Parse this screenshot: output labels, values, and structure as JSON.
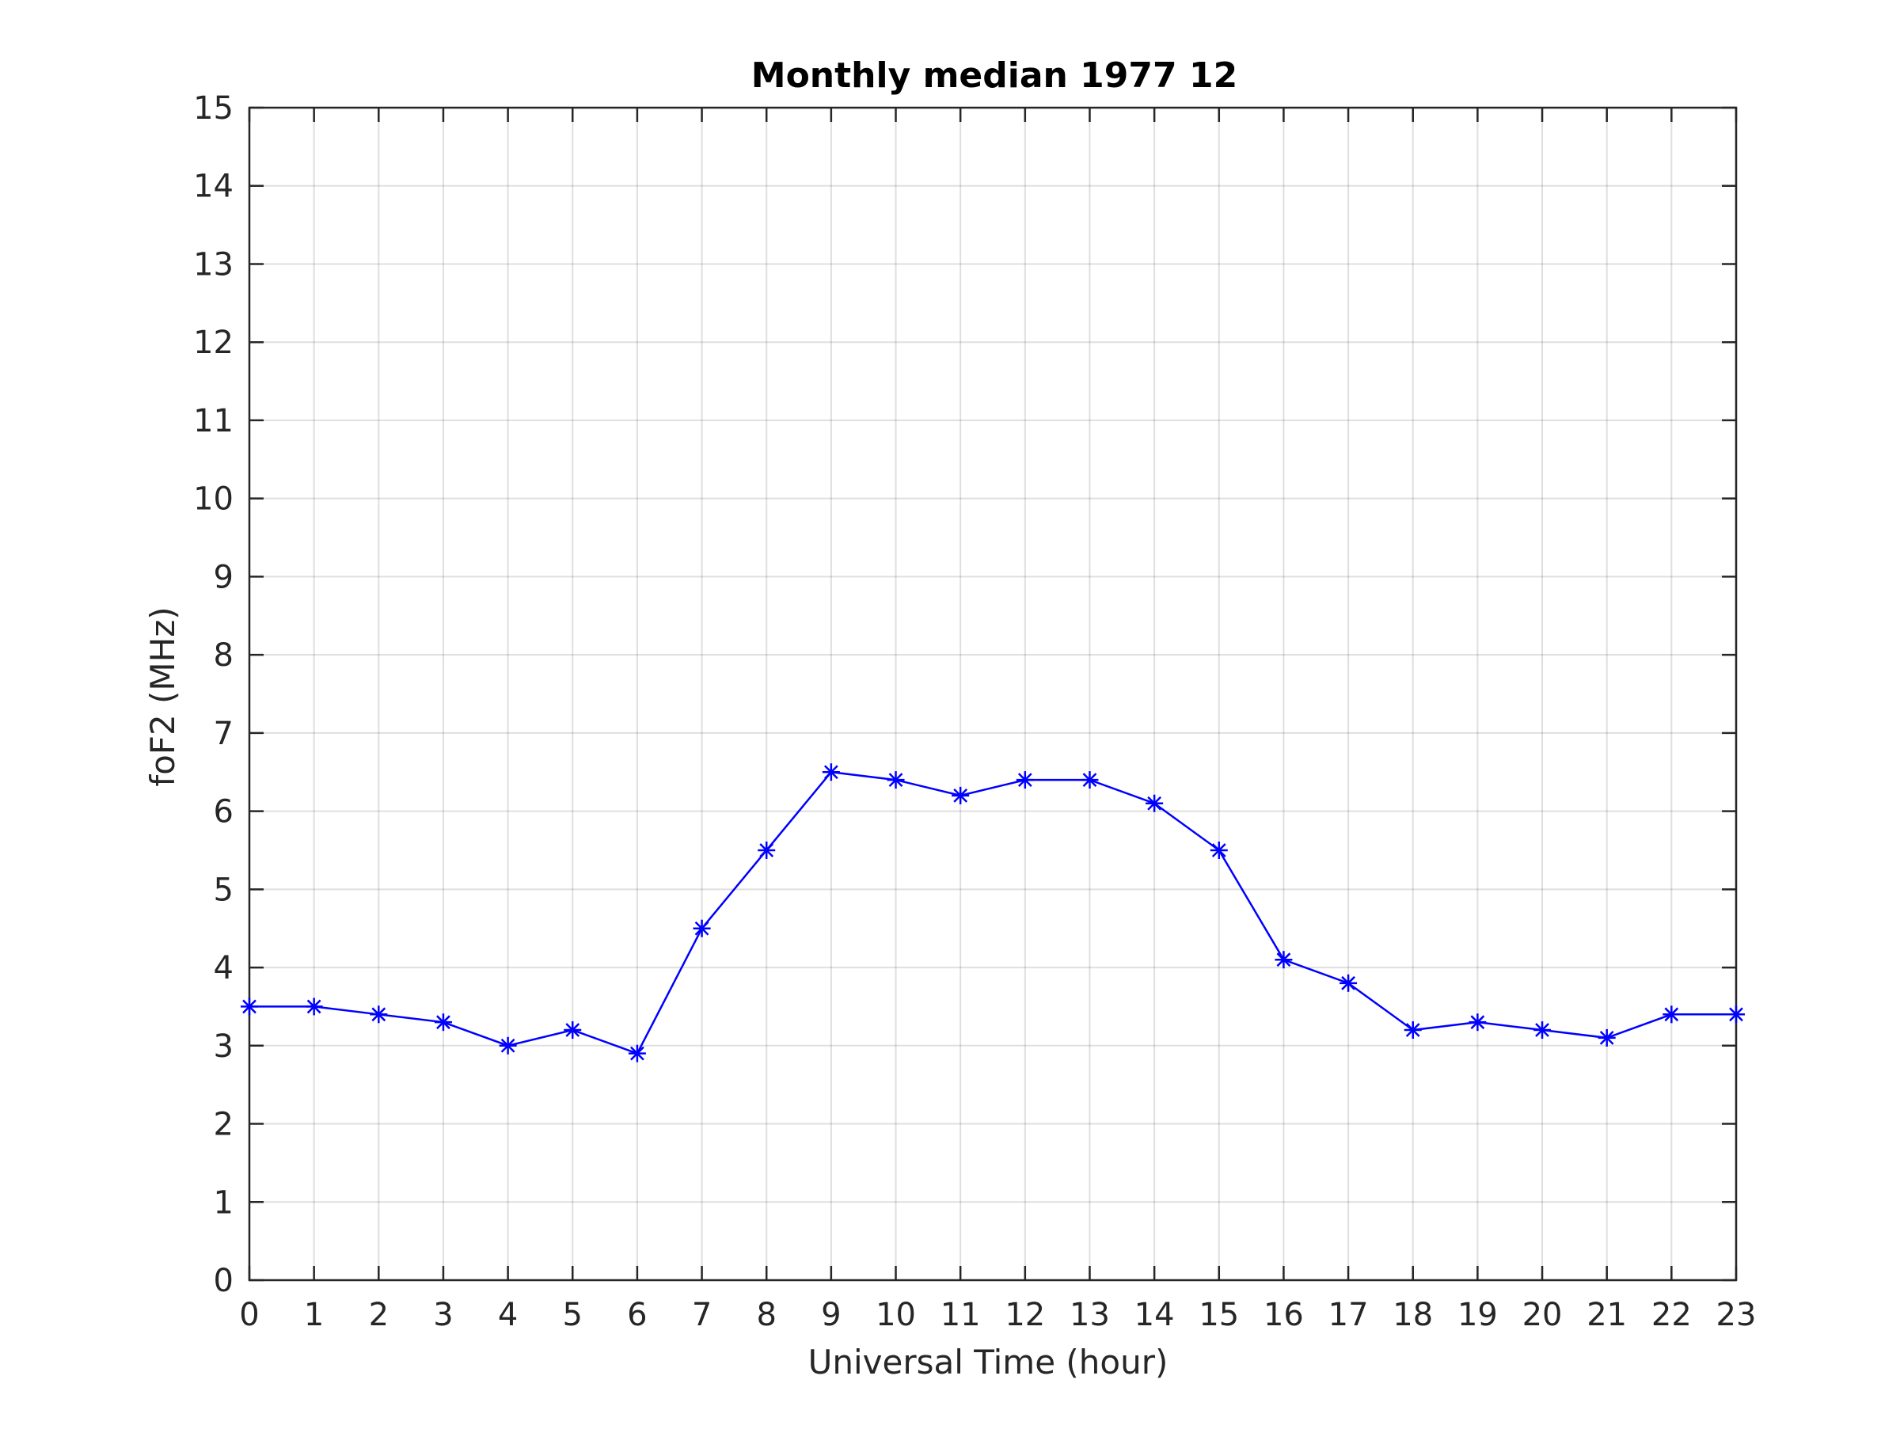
{
  "chart_data": {
    "type": "line",
    "title": "Monthly median 1977 12",
    "xlabel": "Universal Time (hour)",
    "ylabel": "foF2 (MHz)",
    "xlim": [
      0,
      23
    ],
    "ylim": [
      0,
      15
    ],
    "xticks": [
      0,
      1,
      2,
      3,
      4,
      5,
      6,
      7,
      8,
      9,
      10,
      11,
      12,
      13,
      14,
      15,
      16,
      17,
      18,
      19,
      20,
      21,
      22,
      23
    ],
    "yticks": [
      0,
      1,
      2,
      3,
      4,
      5,
      6,
      7,
      8,
      9,
      10,
      11,
      12,
      13,
      14,
      15
    ],
    "grid": true,
    "legend": "none",
    "series": [
      {
        "color": "#0000ff",
        "marker": "asterisk",
        "x": [
          0,
          1,
          2,
          3,
          4,
          5,
          6,
          7,
          8,
          9,
          10,
          11,
          12,
          13,
          14,
          15,
          16,
          17,
          18,
          19,
          20,
          21,
          22,
          23
        ],
        "y": [
          3.5,
          3.5,
          3.4,
          3.3,
          3.0,
          3.2,
          2.9,
          4.5,
          5.5,
          6.5,
          6.4,
          6.2,
          6.4,
          6.4,
          6.1,
          5.5,
          4.1,
          3.8,
          3.2,
          3.3,
          3.2,
          3.1,
          3.4,
          3.4
        ]
      }
    ]
  }
}
